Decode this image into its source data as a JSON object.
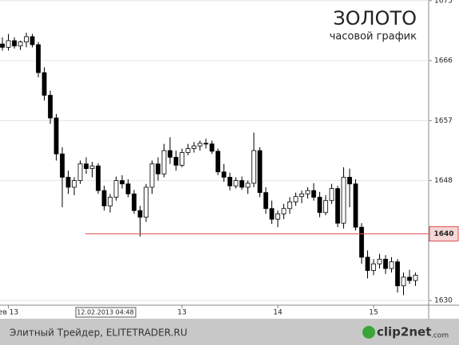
{
  "chart_data": {
    "type": "candlestick",
    "title": "ЗОЛОТО",
    "subtitle": "часовой график",
    "categories": [
      null,
      "ев 13",
      null,
      null,
      null,
      null,
      null,
      null,
      null,
      null,
      null,
      null,
      null,
      null,
      null,
      null,
      null,
      null,
      null,
      null,
      null,
      null,
      null,
      null,
      null,
      null,
      null,
      null,
      null,
      null,
      "13",
      null,
      null,
      null,
      null,
      null,
      null,
      null,
      null,
      null,
      null,
      null,
      null,
      null,
      null,
      null,
      "14",
      null,
      null,
      null,
      null,
      null,
      null,
      null,
      null,
      null,
      null,
      null,
      null,
      null,
      null,
      null,
      "15",
      null,
      null,
      null,
      null,
      null,
      null,
      null
    ],
    "open": [
      1668.5,
      1668,
      1669,
      1668.2,
      1668.8,
      1669.6,
      1668.4,
      1664.2,
      1660.8,
      1657.4,
      1652,
      1648.5,
      1647,
      1648,
      1650.5,
      1649.8,
      1650.2,
      1646.5,
      1644.2,
      1645.5,
      1648,
      1647.5,
      1646,
      1643.5,
      1642.5,
      1647,
      1650.5,
      1649,
      1652.5,
      1651.5,
      1650.3,
      1652.2,
      1652.8,
      1653.2,
      1653.6,
      1653.5,
      1652.4,
      1649.3,
      1648.5,
      1647.2,
      1648,
      1647,
      1647.6,
      1652.5,
      1646.2,
      1643.8,
      1642.2,
      1643,
      1643.8,
      1644.8,
      1645.6,
      1646,
      1646.5,
      1645.5,
      1643.2,
      1645,
      1646.8,
      1641.6,
      1648.5,
      1647.5,
      1641,
      1636.5,
      1634.5,
      1635.5,
      1636.2,
      1634.8,
      1635.8,
      1632.2,
      1633.5,
      1633
    ],
    "high": [
      1669.5,
      1670,
      1669.5,
      1669,
      1670.2,
      1670,
      1668.8,
      1665,
      1661.5,
      1658,
      1653,
      1649.5,
      1648.5,
      1651,
      1651.5,
      1650.8,
      1650.6,
      1647.2,
      1646,
      1648.6,
      1648.8,
      1648.2,
      1646.6,
      1644.2,
      1647.5,
      1651,
      1651.5,
      1653.5,
      1654.5,
      1652.5,
      1652.8,
      1653.5,
      1653.8,
      1654,
      1654.3,
      1654,
      1652.8,
      1650.5,
      1649.2,
      1648.5,
      1648.6,
      1648,
      1655.2,
      1653,
      1647,
      1645,
      1643.5,
      1644.5,
      1645.5,
      1646.2,
      1646.5,
      1647,
      1647.6,
      1646.3,
      1645.8,
      1647.5,
      1647.2,
      1650,
      1649.8,
      1648.2,
      1641.6,
      1637.5,
      1636.2,
      1637,
      1636.8,
      1636.5,
      1636.2,
      1634.2,
      1634.6,
      1634.2
    ],
    "low": [
      1667.5,
      1667.5,
      1667.8,
      1667.6,
      1668,
      1668,
      1663.5,
      1660,
      1656.5,
      1651,
      1644,
      1646,
      1645.8,
      1647.5,
      1649,
      1648.5,
      1646,
      1643.5,
      1643.2,
      1645,
      1646.8,
      1645.5,
      1643,
      1639.6,
      1641.8,
      1646,
      1648,
      1648.5,
      1650.5,
      1649.5,
      1650,
      1651.8,
      1652.2,
      1652.5,
      1652.8,
      1652,
      1648.8,
      1647.8,
      1646.5,
      1646.8,
      1646.6,
      1646,
      1647,
      1645.5,
      1643,
      1641.5,
      1641,
      1642.2,
      1643,
      1644.2,
      1644.6,
      1645.3,
      1645,
      1642.5,
      1642.8,
      1644.5,
      1641,
      1640.8,
      1644,
      1640.5,
      1635.5,
      1633.3,
      1633.8,
      1634.8,
      1634,
      1634.2,
      1631.2,
      1630.8,
      1632.5,
      1632.2
    ],
    "close": [
      1668,
      1669,
      1668.2,
      1668.8,
      1669.6,
      1668.4,
      1664.2,
      1660.8,
      1657.4,
      1652,
      1648.5,
      1647,
      1648,
      1650.5,
      1649.8,
      1650.2,
      1646.5,
      1644.2,
      1645.5,
      1648,
      1647.5,
      1646,
      1643.5,
      1642.5,
      1647,
      1650.5,
      1649,
      1652.5,
      1651.5,
      1650.3,
      1652.2,
      1652.8,
      1653.2,
      1653.6,
      1653.5,
      1652.4,
      1649.3,
      1648.5,
      1647.2,
      1648,
      1647,
      1647.6,
      1652.5,
      1646.2,
      1643.8,
      1642.2,
      1643,
      1643.8,
      1644.8,
      1645.6,
      1646,
      1646.5,
      1645.5,
      1643.2,
      1645,
      1646.8,
      1641.6,
      1648.5,
      1647.5,
      1641,
      1636.5,
      1634.5,
      1635.5,
      1636.2,
      1634.8,
      1635.8,
      1632.2,
      1633.5,
      1633,
      1633.8
    ],
    "up_color": "#ffffff",
    "down_color": "#000000",
    "ylim": [
      1629.3,
      1675.1
    ],
    "yticks": [
      1630,
      1648,
      1657,
      1666,
      1675
    ],
    "grid": true,
    "crosshair": {
      "price": 1640,
      "time_label": "12.02.2013 04:48",
      "color": "#e05050"
    }
  },
  "footer": {
    "text": "Элитный Трейдер, ELITETRADER.RU",
    "logo": "clip2net",
    "logo_suffix": ".com"
  }
}
